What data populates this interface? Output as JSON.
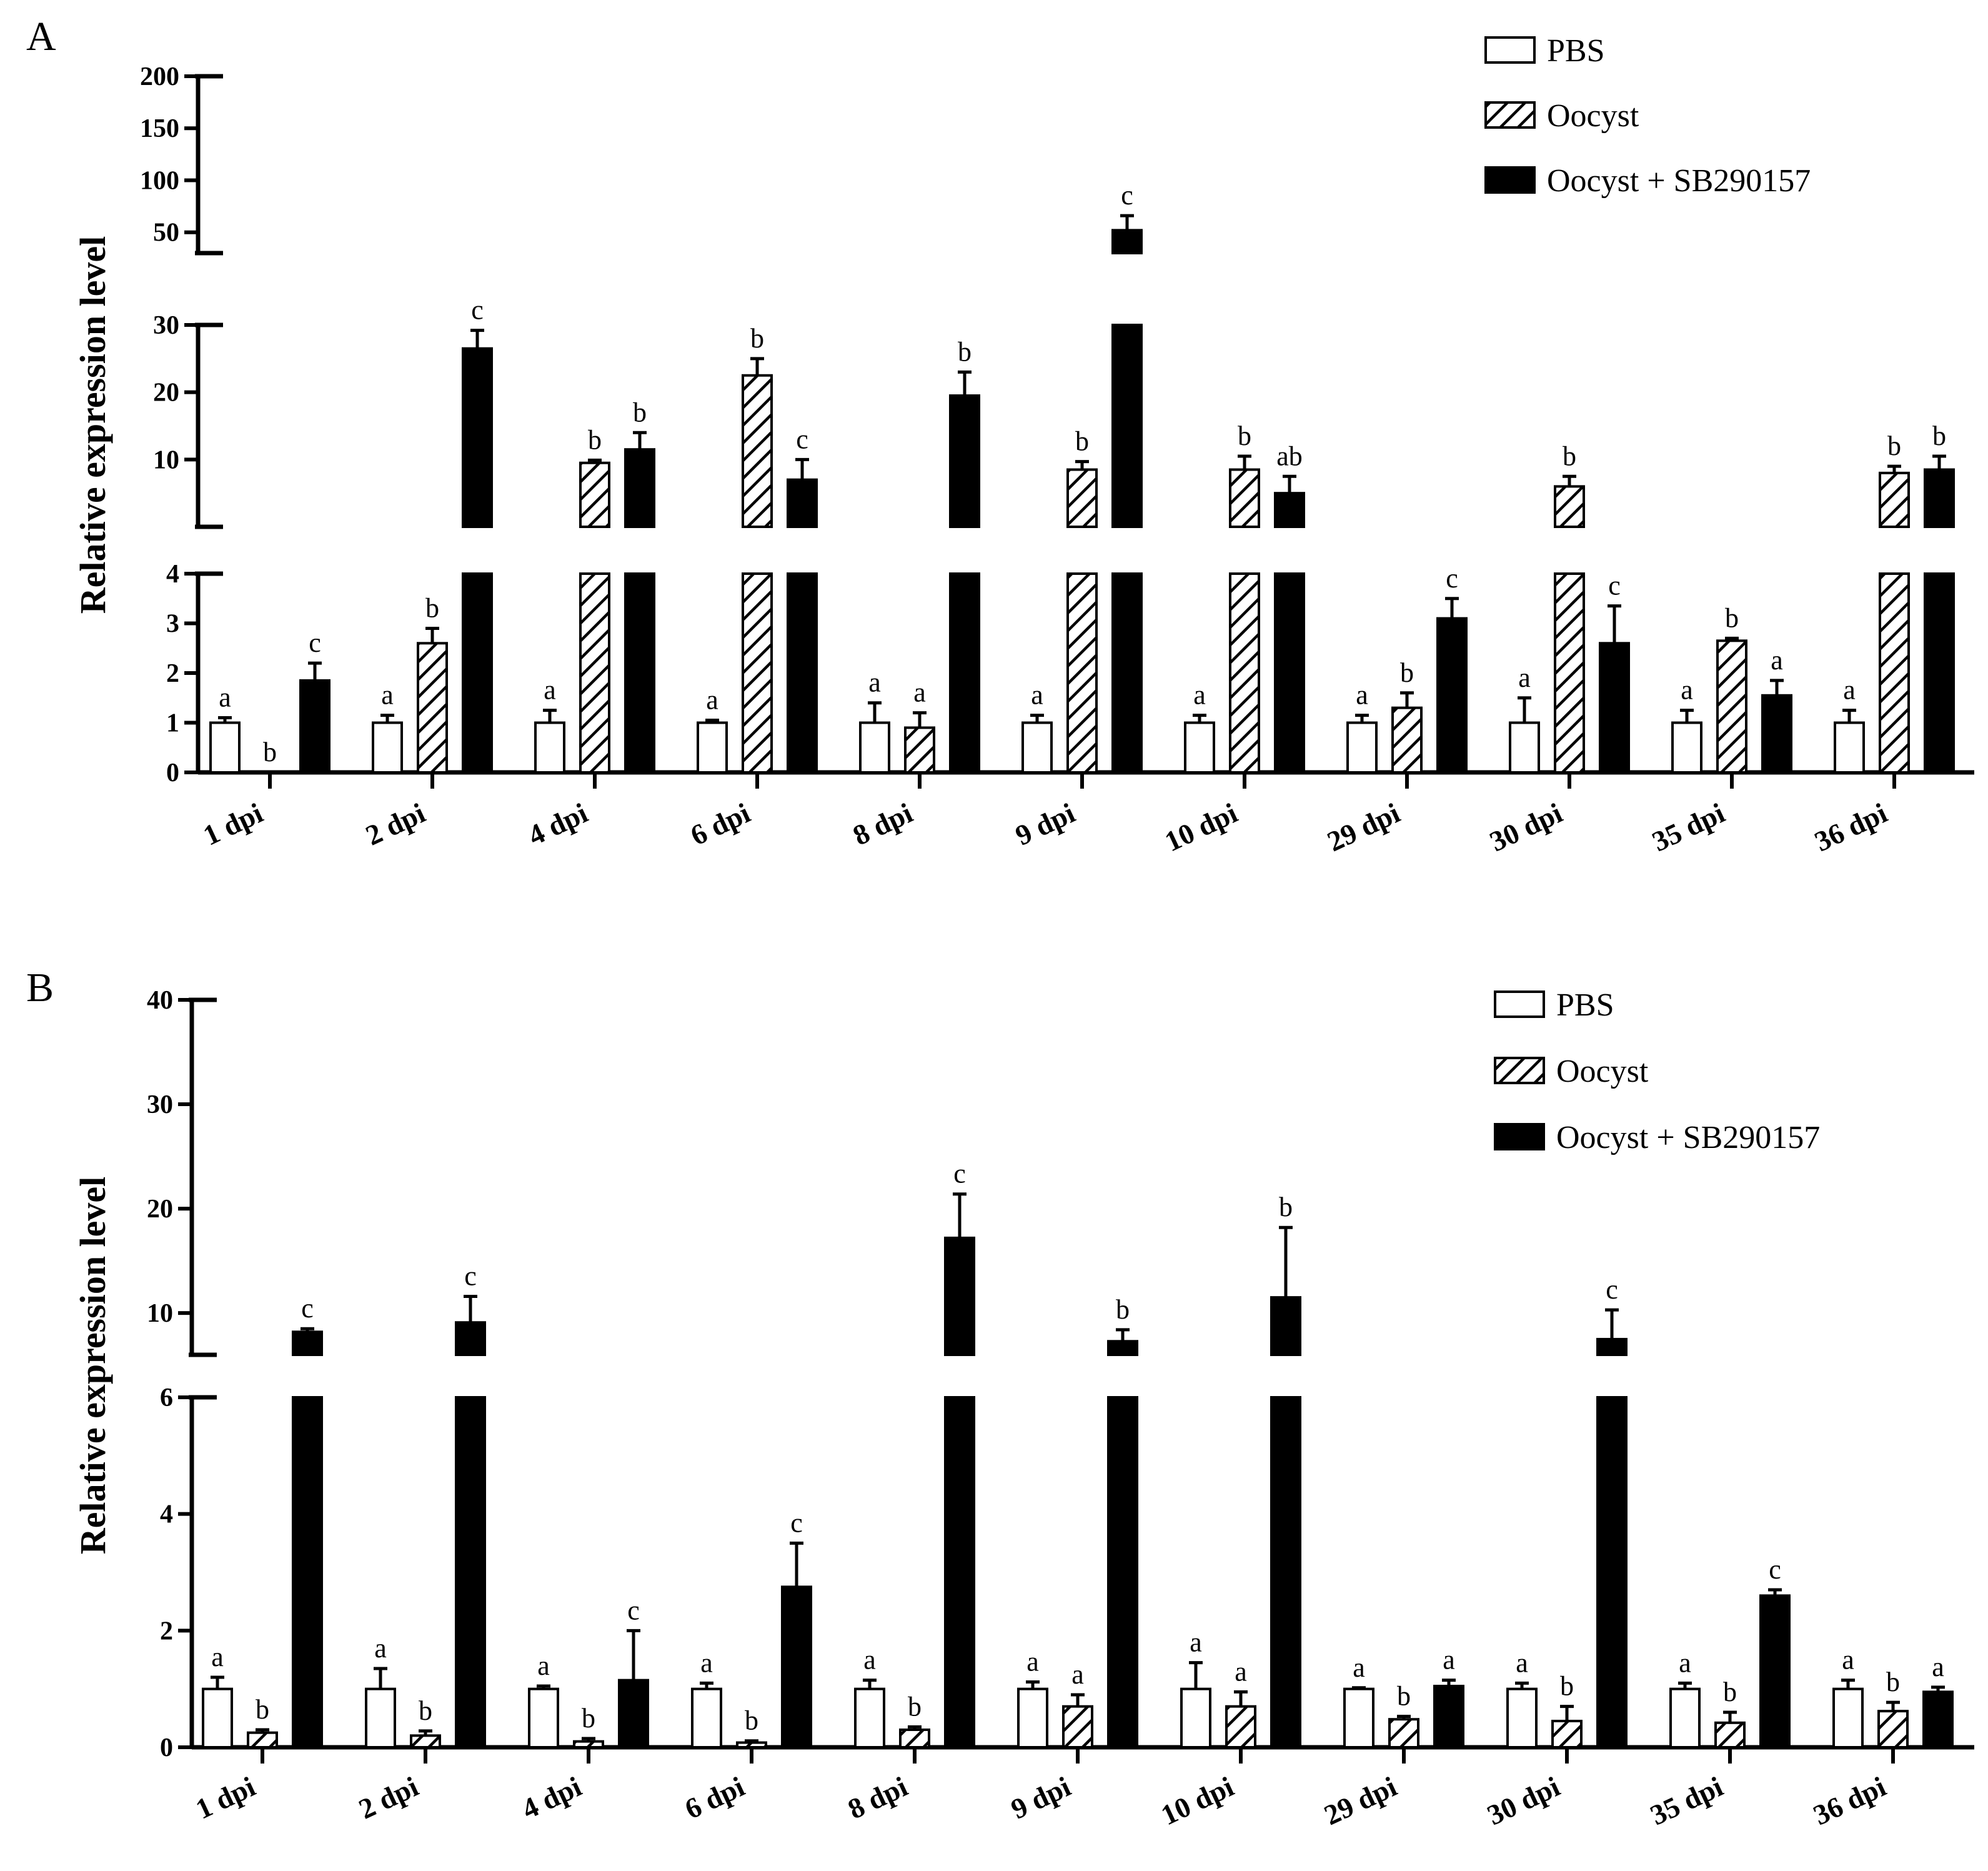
{
  "chart_data": [
    {
      "panel": "A",
      "type": "bar",
      "ylabel": "Relative expression level",
      "categories": [
        "1 dpi",
        "2 dpi",
        "4 dpi",
        "6 dpi",
        "8 dpi",
        "9 dpi",
        "10 dpi",
        "29 dpi",
        "30 dpi",
        "35 dpi",
        "36 dpi"
      ],
      "y_segments": [
        {
          "range": [
            0,
            4
          ],
          "ticks": [
            0,
            1,
            2,
            3,
            4
          ]
        },
        {
          "range": [
            0,
            30
          ],
          "ticks": [
            10,
            20,
            30
          ]
        },
        {
          "range": [
            30,
            200
          ],
          "ticks": [
            50,
            100,
            150,
            200
          ]
        }
      ],
      "legend": [
        "PBS",
        "Oocyst",
        "Oocyst + SB290157"
      ],
      "series": [
        {
          "name": "PBS",
          "pattern": "white",
          "values": [
            1,
            1,
            1,
            1,
            1,
            1,
            1,
            1,
            1,
            1,
            1
          ],
          "errors": [
            0.1,
            0.15,
            0.25,
            0.05,
            0.4,
            0.15,
            0.15,
            0.15,
            0.5,
            0.25,
            0.25
          ],
          "letters": [
            "a",
            "a",
            "a",
            "a",
            "a",
            "a",
            "a",
            "a",
            "a",
            "a",
            "a"
          ]
        },
        {
          "name": "Oocyst",
          "pattern": "hatched",
          "values": [
            0,
            2.6,
            9.5,
            22.5,
            0.9,
            8.5,
            8.5,
            1.3,
            6,
            2.65,
            8
          ],
          "errors": [
            0,
            0.3,
            0.4,
            2.5,
            0.3,
            1.2,
            2,
            0.3,
            1.5,
            0.05,
            1
          ],
          "letters": [
            "b",
            "b",
            "b",
            "b",
            "a",
            "b",
            "b",
            "b",
            "b",
            "b",
            "b"
          ]
        },
        {
          "name": "Oocyst + SB290157",
          "pattern": "black",
          "values": [
            1.85,
            26.5,
            11.5,
            7,
            19.5,
            52,
            5,
            3.1,
            2.6,
            1.55,
            8.5
          ],
          "errors": [
            0.35,
            2.7,
            2.5,
            3,
            3.5,
            14,
            2.5,
            0.4,
            0.75,
            0.3,
            2
          ],
          "letters": [
            "c",
            "c",
            "b",
            "c",
            "b",
            "c",
            "ab",
            "c",
            "c",
            "a",
            "b"
          ]
        }
      ]
    },
    {
      "panel": "B",
      "type": "bar",
      "ylabel": "Relative expression level",
      "categories": [
        "1 dpi",
        "2 dpi",
        "4 dpi",
        "6 dpi",
        "8 dpi",
        "9 dpi",
        "10 dpi",
        "29 dpi",
        "30 dpi",
        "35 dpi",
        "36 dpi"
      ],
      "y_segments": [
        {
          "range": [
            0,
            6
          ],
          "ticks": [
            0,
            2,
            4,
            6
          ]
        },
        {
          "range": [
            6,
            40
          ],
          "ticks": [
            10,
            20,
            30,
            40
          ]
        }
      ],
      "legend": [
        "PBS",
        "Oocyst",
        "Oocyst + SB290157"
      ],
      "series": [
        {
          "name": "PBS",
          "pattern": "white",
          "values": [
            1,
            1,
            1,
            1,
            1,
            1,
            1,
            1,
            1,
            1,
            1
          ],
          "errors": [
            0.2,
            0.35,
            0.05,
            0.1,
            0.15,
            0.12,
            0.45,
            0.02,
            0.1,
            0.1,
            0.15
          ],
          "letters": [
            "a",
            "a",
            "a",
            "a",
            "a",
            "a",
            "a",
            "a",
            "a",
            "a",
            "a"
          ]
        },
        {
          "name": "Oocyst",
          "pattern": "hatched",
          "values": [
            0.25,
            0.2,
            0.1,
            0.08,
            0.3,
            0.7,
            0.7,
            0.48,
            0.45,
            0.42,
            0.62
          ],
          "errors": [
            0.05,
            0.08,
            0.05,
            0.03,
            0.05,
            0.2,
            0.25,
            0.05,
            0.25,
            0.18,
            0.15
          ],
          "letters": [
            "b",
            "b",
            "b",
            "b",
            "b",
            "a",
            "a",
            "b",
            "b",
            "b",
            "b"
          ]
        },
        {
          "name": "Oocyst + SB290157",
          "pattern": "black",
          "values": [
            8.2,
            9.1,
            1.15,
            2.75,
            17.2,
            7.3,
            11.5,
            1.05,
            7.5,
            2.6,
            0.95
          ],
          "errors": [
            0.3,
            2.5,
            0.85,
            0.75,
            4.2,
            1.1,
            6.7,
            0.1,
            2.8,
            0.1,
            0.08
          ],
          "letters": [
            "c",
            "c",
            "c",
            "c",
            "c",
            "b",
            "b",
            "a",
            "c",
            "c",
            "a"
          ]
        }
      ]
    }
  ]
}
